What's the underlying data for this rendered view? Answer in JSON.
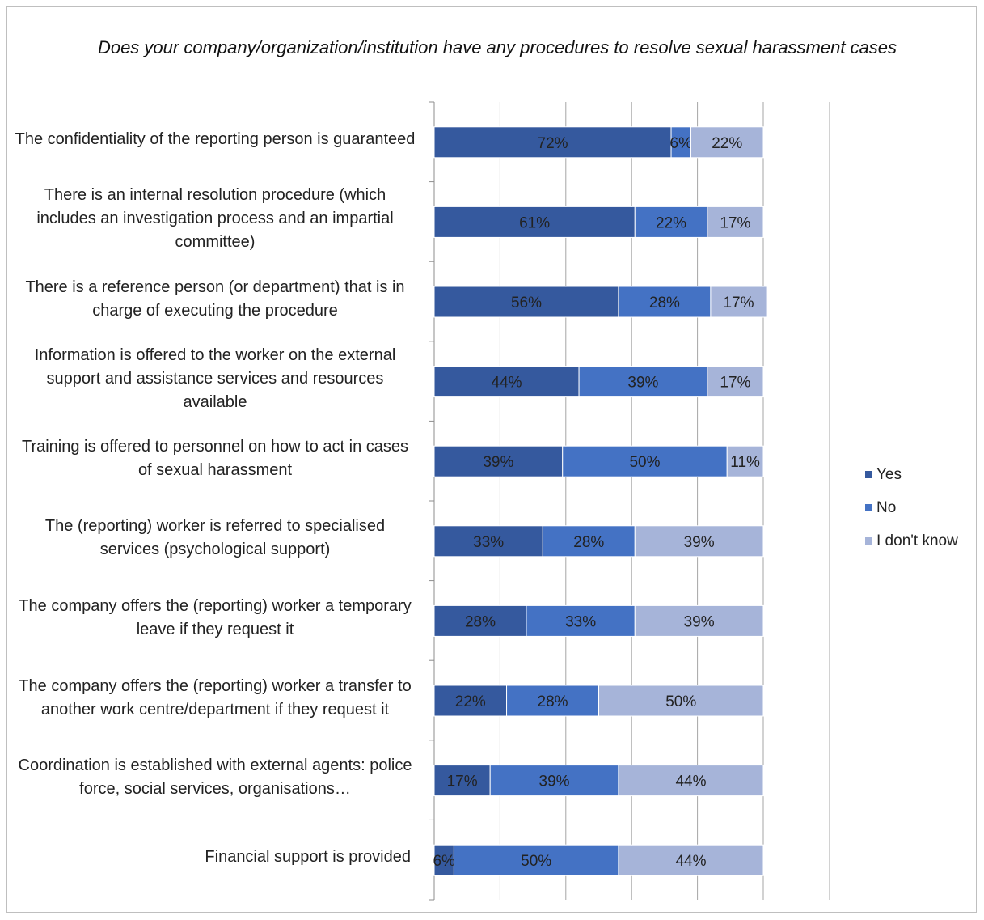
{
  "chart_data": {
    "type": "bar",
    "orientation": "horizontal",
    "stacked": true,
    "title": "Does your company/organization/institution have any procedures to resolve sexual harassment cases",
    "categories": [
      "The confidentiality of the reporting person is guaranteed",
      "There is an internal resolution procedure (which includes an investigation process and an impartial committee)",
      "There is a reference person (or department) that is in charge of executing the procedure",
      "Information is offered to the worker on the external support and assistance services and resources available",
      "Training is offered to personnel on how to act in cases of sexual harassment",
      "The (reporting) worker is referred to specialised services (psychological support)",
      "The company offers the (reporting) worker a temporary leave if they request it",
      "The company offers the (reporting) worker a transfer to another work centre/department if they request it",
      "Coordination is established with external agents: police force, social services, organisations…",
      "Financial support is provided"
    ],
    "series": [
      {
        "name": "Yes",
        "color": "#35599e",
        "values": [
          72,
          61,
          56,
          44,
          39,
          33,
          28,
          22,
          17,
          6
        ]
      },
      {
        "name": "No",
        "color": "#4472c4",
        "values": [
          6,
          22,
          28,
          39,
          50,
          28,
          33,
          28,
          39,
          50
        ]
      },
      {
        "name": "I don't know",
        "color": "#a6b4d9",
        "values": [
          22,
          17,
          17,
          17,
          11,
          39,
          39,
          50,
          44,
          44
        ]
      }
    ],
    "data_label_suffix": "%",
    "xlim": [
      0,
      100
    ],
    "grid": true,
    "legend_position": "right"
  }
}
